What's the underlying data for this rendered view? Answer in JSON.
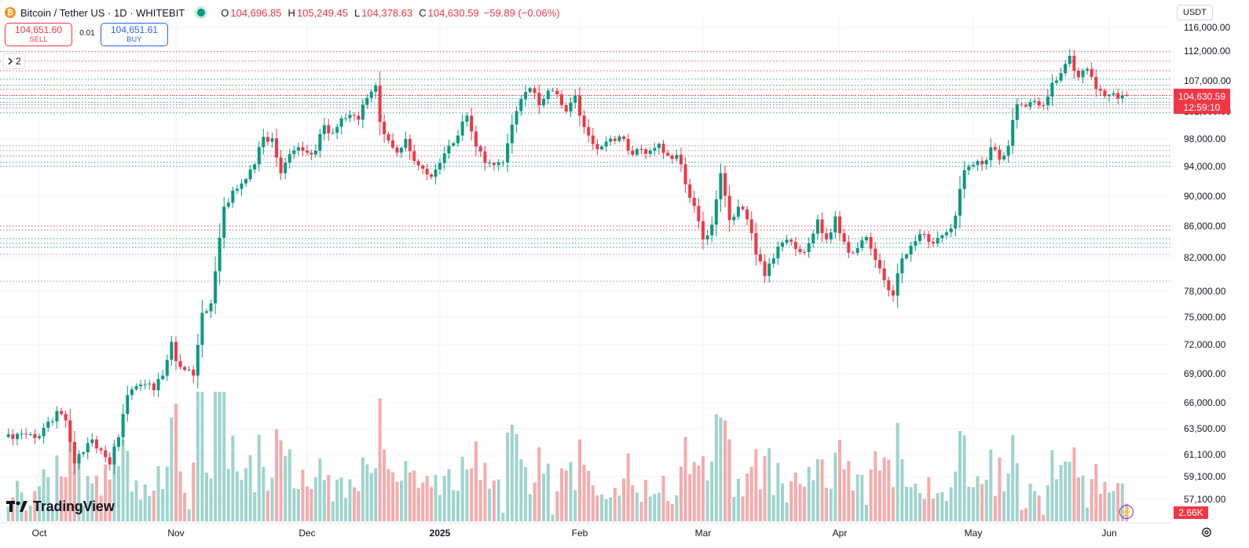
{
  "header": {
    "symbol_title": "Bitcoin / Tether US · 1D · WHITEBIT",
    "logo_icon": "bitcoin-icon",
    "open_label": "O",
    "open_value": "104,696.85",
    "high_label": "H",
    "high_value": "105,249.45",
    "low_label": "L",
    "low_value": "104,378.63",
    "close_label": "C",
    "close_value": "104,630.59",
    "change": "−59.89 (−0.06%)"
  },
  "trade": {
    "sell_price": "104,651.60",
    "sell_label": "SELL",
    "spread": "0.01",
    "buy_price": "104,651.61",
    "buy_label": "BUY"
  },
  "indicators": {
    "count": "2",
    "icon": "chevron-icon"
  },
  "price_scale": {
    "currency": "USDT",
    "last_price": "104,630.59",
    "countdown": "12:59:10",
    "volume_label": "2.66K"
  },
  "watermark": {
    "text": "TradingView"
  },
  "colors": {
    "up": "#089981",
    "down": "#f23645",
    "up_volume": "#9fd4cd",
    "down_volume": "#f5abab",
    "grid": "#f0f3fa",
    "accent": "#2962ff"
  },
  "chart_data": {
    "type": "candlestick",
    "interval": "1D",
    "y_ticks": [
      116000,
      112000,
      107000,
      102000,
      98000,
      94000,
      90000,
      86000,
      82000,
      78000,
      75000,
      72000,
      69000,
      66000,
      63500,
      61100,
      59100,
      57100
    ],
    "y_tick_labels": [
      "116,000.00",
      "112,000.00",
      "107,000.00",
      "102,000.00",
      "98,000.00",
      "94,000.00",
      "90,000.00",
      "86,000.00",
      "82,000.00",
      "78,000.00",
      "75,000.00",
      "72,000.00",
      "69,000.00",
      "66,000.00",
      "63,500.00",
      "61,100.00",
      "59,100.00",
      "57,100.00"
    ],
    "x_labels": [
      {
        "label": "Oct",
        "day": 0
      },
      {
        "label": "Nov",
        "day": 31
      },
      {
        "label": "Dec",
        "day": 61
      },
      {
        "label": "2025",
        "day": 92
      },
      {
        "label": "Feb",
        "day": 123
      },
      {
        "label": "Mar",
        "day": 151
      },
      {
        "label": "Apr",
        "day": 182
      },
      {
        "label": "May",
        "day": 212
      },
      {
        "label": "Jun",
        "day": 243
      }
    ],
    "x_range_days": [
      -7,
      248
    ],
    "anchors": [
      [
        0,
        62800
      ],
      [
        4,
        65200
      ],
      [
        6,
        64300
      ],
      [
        8,
        60300
      ],
      [
        10,
        61300
      ],
      [
        12,
        62500
      ],
      [
        14,
        61500
      ],
      [
        16,
        60200
      ],
      [
        18,
        62700
      ],
      [
        20,
        66800
      ],
      [
        22,
        67700
      ],
      [
        24,
        67900
      ],
      [
        26,
        67300
      ],
      [
        28,
        68800
      ],
      [
        30,
        72300
      ],
      [
        31,
        70300
      ],
      [
        33,
        69400
      ],
      [
        35,
        68800
      ],
      [
        37,
        75500
      ],
      [
        39,
        76600
      ],
      [
        42,
        88600
      ],
      [
        45,
        91000
      ],
      [
        47,
        92300
      ],
      [
        49,
        94300
      ],
      [
        51,
        98300
      ],
      [
        53,
        98100
      ],
      [
        55,
        93100
      ],
      [
        57,
        95800
      ],
      [
        59,
        96800
      ],
      [
        61,
        96000
      ],
      [
        63,
        96300
      ],
      [
        65,
        100000
      ],
      [
        67,
        98900
      ],
      [
        69,
        101000
      ],
      [
        71,
        101500
      ],
      [
        73,
        100800
      ],
      [
        75,
        104200
      ],
      [
        77,
        106200
      ],
      [
        78,
        100500
      ],
      [
        80,
        97800
      ],
      [
        82,
        96000
      ],
      [
        84,
        98000
      ],
      [
        86,
        94800
      ],
      [
        88,
        93700
      ],
      [
        90,
        92600
      ],
      [
        92,
        94500
      ],
      [
        94,
        97000
      ],
      [
        96,
        98500
      ],
      [
        98,
        101400
      ],
      [
        100,
        96900
      ],
      [
        102,
        94500
      ],
      [
        104,
        94200
      ],
      [
        106,
        94600
      ],
      [
        108,
        100100
      ],
      [
        110,
        104000
      ],
      [
        112,
        105800
      ],
      [
        114,
        103000
      ],
      [
        116,
        105400
      ],
      [
        118,
        104800
      ],
      [
        120,
        102000
      ],
      [
        122,
        104600
      ],
      [
        123,
        101400
      ],
      [
        125,
        98500
      ],
      [
        127,
        96500
      ],
      [
        129,
        97600
      ],
      [
        131,
        97700
      ],
      [
        133,
        98000
      ],
      [
        135,
        95700
      ],
      [
        137,
        96500
      ],
      [
        139,
        96300
      ],
      [
        141,
        97300
      ],
      [
        143,
        95600
      ],
      [
        145,
        95700
      ],
      [
        147,
        91600
      ],
      [
        149,
        88700
      ],
      [
        151,
        84300
      ],
      [
        153,
        86200
      ],
      [
        155,
        93100
      ],
      [
        157,
        86800
      ],
      [
        159,
        88600
      ],
      [
        161,
        86900
      ],
      [
        163,
        82400
      ],
      [
        165,
        79800
      ],
      [
        167,
        81900
      ],
      [
        169,
        83900
      ],
      [
        171,
        84000
      ],
      [
        173,
        82700
      ],
      [
        175,
        83800
      ],
      [
        177,
        86900
      ],
      [
        179,
        84300
      ],
      [
        181,
        87300
      ],
      [
        182,
        85100
      ],
      [
        184,
        82600
      ],
      [
        186,
        83200
      ],
      [
        188,
        84600
      ],
      [
        190,
        81700
      ],
      [
        192,
        79300
      ],
      [
        194,
        77500
      ],
      [
        196,
        81900
      ],
      [
        198,
        83500
      ],
      [
        200,
        85000
      ],
      [
        202,
        84000
      ],
      [
        204,
        84500
      ],
      [
        206,
        85200
      ],
      [
        208,
        87400
      ],
      [
        210,
        93500
      ],
      [
        212,
        94200
      ],
      [
        214,
        94300
      ],
      [
        216,
        96800
      ],
      [
        218,
        95000
      ],
      [
        220,
        97000
      ],
      [
        222,
        103200
      ],
      [
        224,
        102800
      ],
      [
        226,
        103700
      ],
      [
        228,
        103000
      ],
      [
        230,
        106700
      ],
      [
        232,
        108300
      ],
      [
        234,
        111200
      ],
      [
        236,
        107600
      ],
      [
        238,
        109000
      ],
      [
        240,
        105700
      ],
      [
        242,
        104500
      ],
      [
        244,
        105000
      ],
      [
        246,
        104630.59
      ]
    ],
    "last_candle": {
      "day": 247,
      "open": 104696.85,
      "high": 105249.45,
      "low": 104378.63,
      "close": 104630.59
    },
    "horizontal_levels": [
      {
        "price": 111900,
        "style": "dotted",
        "color": "down"
      },
      {
        "price": 110300,
        "style": "dotted",
        "color": "down"
      },
      {
        "price": 108700,
        "style": "dotted",
        "color": "down"
      },
      {
        "price": 107300,
        "style": "dotted",
        "color": "up"
      },
      {
        "price": 106300,
        "style": "dotted",
        "color": "up"
      },
      {
        "price": 105600,
        "style": "dotted",
        "color": "down"
      },
      {
        "price": 104650,
        "style": "dotted",
        "color": "down"
      },
      {
        "price": 104100,
        "style": "dotted",
        "color": "up"
      },
      {
        "price": 103500,
        "style": "dotted",
        "color": "up"
      },
      {
        "price": 103100,
        "style": "dotted",
        "color": "up"
      },
      {
        "price": 102600,
        "style": "dotted",
        "color": "down"
      },
      {
        "price": 101800,
        "style": "dotted",
        "color": "up"
      },
      {
        "price": 97000,
        "style": "dotted",
        "color": "brown"
      },
      {
        "price": 96300,
        "style": "dotted",
        "color": "brown"
      },
      {
        "price": 95500,
        "style": "dotted",
        "color": "down"
      },
      {
        "price": 94600,
        "style": "dotted",
        "color": "up"
      },
      {
        "price": 94000,
        "style": "dotted",
        "color": "up"
      },
      {
        "price": 86000,
        "style": "dotted",
        "color": "down"
      },
      {
        "price": 85500,
        "style": "dotted",
        "color": "down"
      },
      {
        "price": 84400,
        "style": "dotted",
        "color": "up"
      },
      {
        "price": 83800,
        "style": "dotted",
        "color": "up"
      },
      {
        "price": 83300,
        "style": "dotted",
        "color": "up"
      },
      {
        "price": 82400,
        "style": "dotted",
        "color": "brown"
      },
      {
        "price": 79200,
        "style": "dotted",
        "color": "brown"
      }
    ],
    "volume_badge": "2.66K",
    "grid": true
  }
}
